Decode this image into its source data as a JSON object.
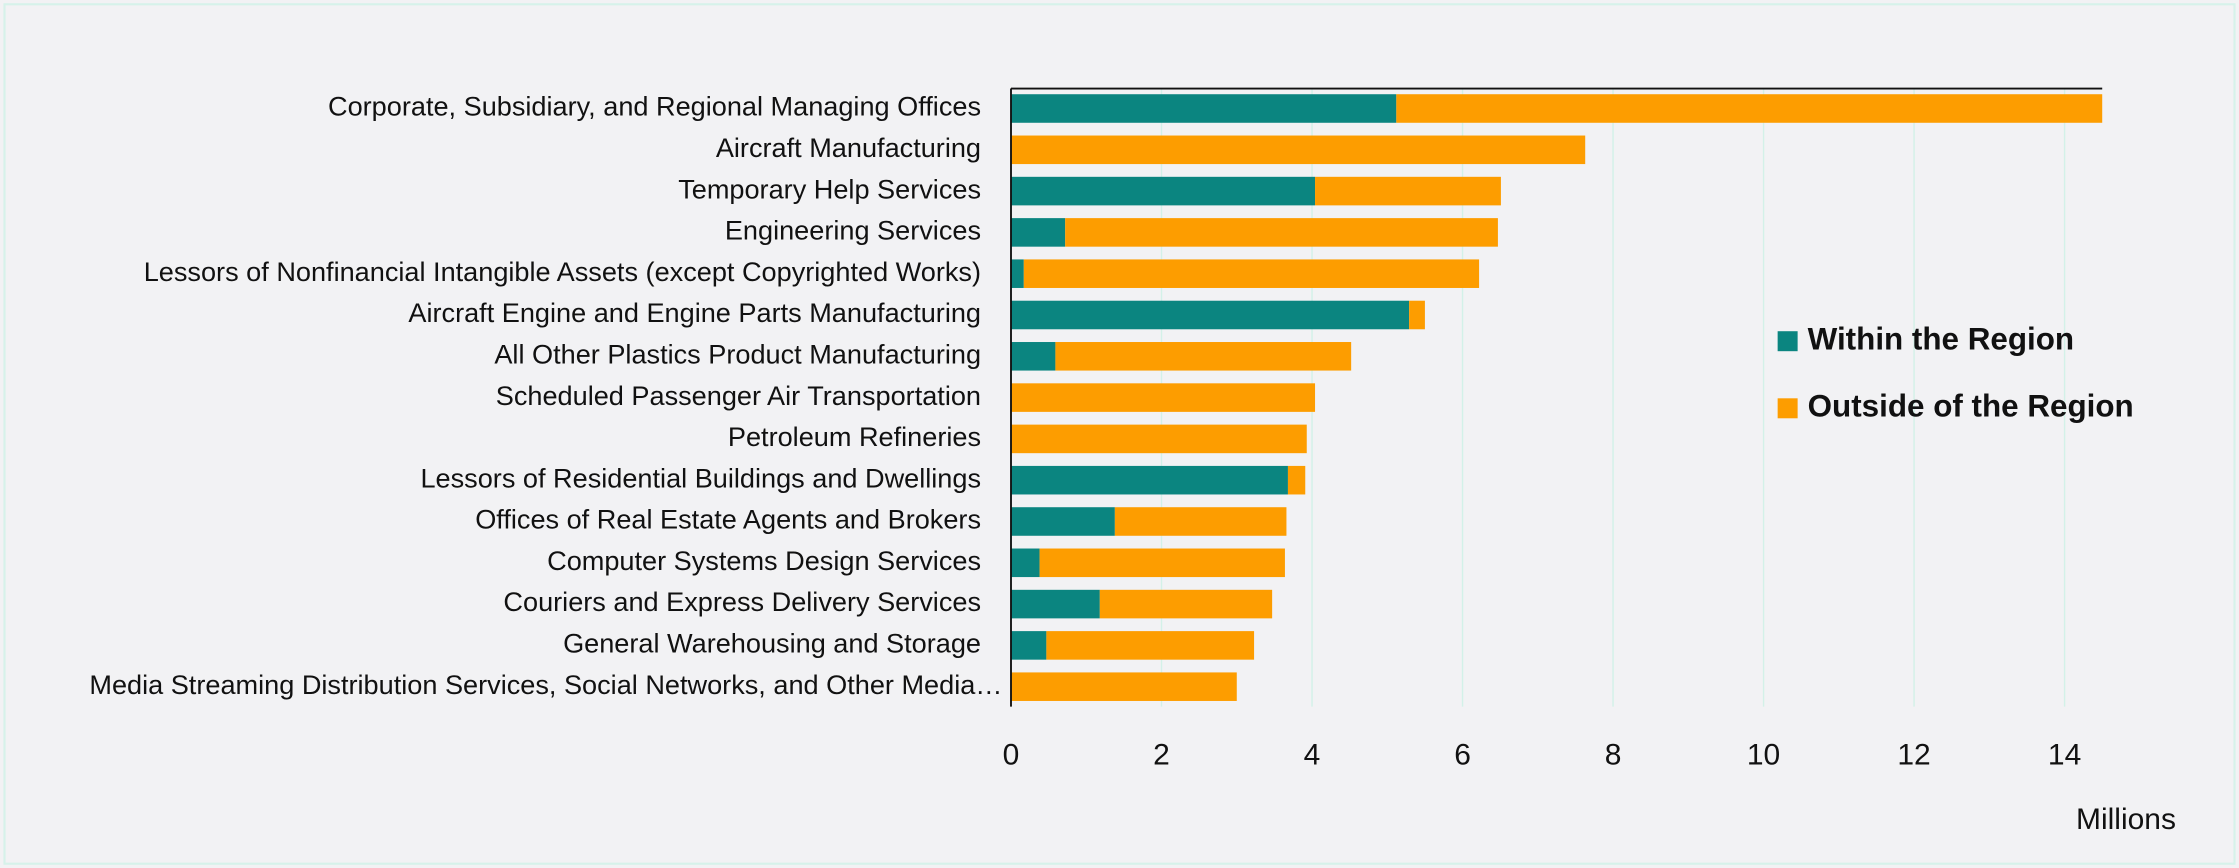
{
  "chart_data": {
    "type": "stacked-barh",
    "x_label": "Millions",
    "categories": [
      "Corporate, Subsidiary, and Regional Managing Offices",
      "Aircraft Manufacturing",
      "Temporary Help Services",
      "Engineering Services",
      "Lessors of Nonfinancial Intangible Assets (except Copyrighted Works)",
      "Aircraft Engine and Engine Parts Manufacturing",
      "All Other Plastics Product Manufacturing",
      "Scheduled Passenger Air Transportation",
      "Petroleum Refineries",
      "Lessors of Residential Buildings and Dwellings",
      "Offices of Real Estate Agents and Brokers",
      "Computer Systems Design Services",
      "Couriers and Express Delivery Services",
      "General Warehousing and Storage",
      "Media Streaming Distribution Services, Social Networks, and Other Media…"
    ],
    "series": [
      {
        "name": "Within the Region",
        "color": "#0b8580",
        "values": [
          5.12,
          0,
          4.04,
          0.72,
          0.17,
          5.29,
          0.59,
          0,
          0,
          3.68,
          1.38,
          0.38,
          1.18,
          0.47,
          0
        ]
      },
      {
        "name": "Outside of the Region",
        "color": "#fd9d00",
        "values": [
          9.38,
          7.63,
          2.47,
          5.75,
          6.05,
          0.21,
          3.93,
          4.04,
          3.93,
          0.23,
          2.28,
          3.26,
          2.29,
          2.76,
          3.0
        ]
      }
    ],
    "xlim": [
      0,
      14.5
    ],
    "xticks": [
      0,
      2,
      4,
      6,
      8,
      10,
      12,
      14
    ],
    "grid": true,
    "legend": "right"
  }
}
